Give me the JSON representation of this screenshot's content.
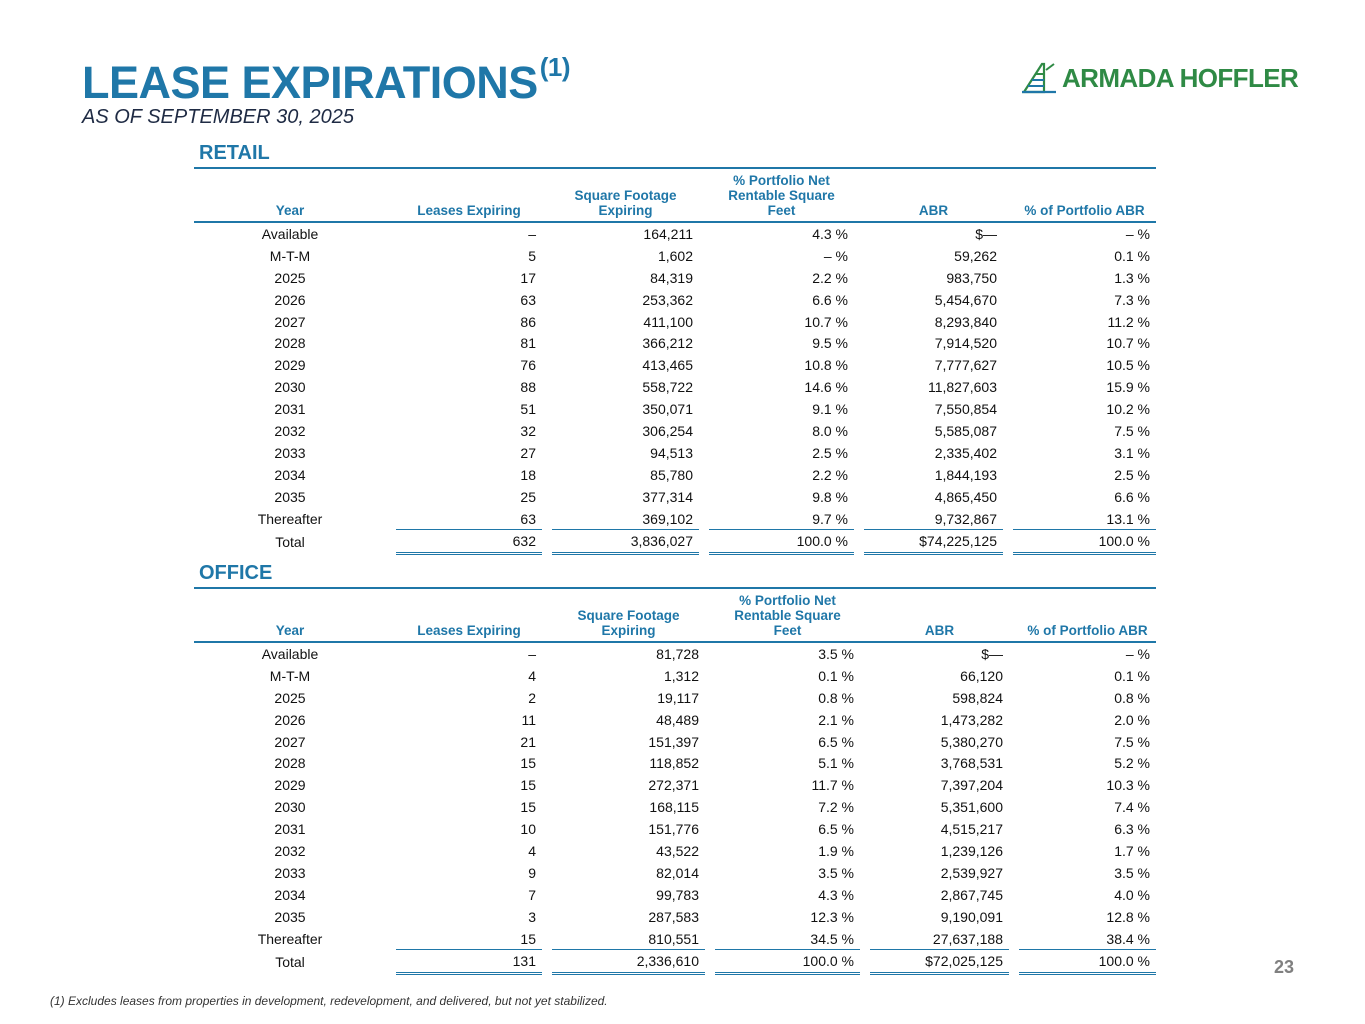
{
  "header": {
    "title": "LEASE EXPIRATIONS",
    "title_note": "(1)",
    "subtitle": "AS OF SEPTEMBER 30, 2025",
    "logo_text": "ARMADA HOFFLER"
  },
  "colors": {
    "accent": "#1f77a8",
    "logo": "#2f8a45"
  },
  "icons": {
    "logo": "armada-hoffler-logo-icon"
  },
  "retail": {
    "title": "RETAIL",
    "headers": {
      "year": "Year",
      "leases": "Leases Expiring",
      "sqft": "Square Footage Expiring",
      "pct_nrsf": "% Portfolio Net Rentable Square Feet",
      "abr": "ABR",
      "pct_abr": "% of Portfolio ABR"
    },
    "rows": [
      {
        "year": "Available",
        "leases": "–",
        "sqft": "164,211",
        "pct_nrsf": "4.3 %",
        "abr": "$—",
        "pct_abr": "– %"
      },
      {
        "year": "M-T-M",
        "leases": "5",
        "sqft": "1,602",
        "pct_nrsf": "– %",
        "abr": "59,262",
        "pct_abr": "0.1 %"
      },
      {
        "year": "2025",
        "leases": "17",
        "sqft": "84,319",
        "pct_nrsf": "2.2 %",
        "abr": "983,750",
        "pct_abr": "1.3 %"
      },
      {
        "year": "2026",
        "leases": "63",
        "sqft": "253,362",
        "pct_nrsf": "6.6 %",
        "abr": "5,454,670",
        "pct_abr": "7.3 %"
      },
      {
        "year": "2027",
        "leases": "86",
        "sqft": "411,100",
        "pct_nrsf": "10.7 %",
        "abr": "8,293,840",
        "pct_abr": "11.2 %"
      },
      {
        "year": "2028",
        "leases": "81",
        "sqft": "366,212",
        "pct_nrsf": "9.5 %",
        "abr": "7,914,520",
        "pct_abr": "10.7 %"
      },
      {
        "year": "2029",
        "leases": "76",
        "sqft": "413,465",
        "pct_nrsf": "10.8 %",
        "abr": "7,777,627",
        "pct_abr": "10.5 %"
      },
      {
        "year": "2030",
        "leases": "88",
        "sqft": "558,722",
        "pct_nrsf": "14.6 %",
        "abr": "11,827,603",
        "pct_abr": "15.9 %"
      },
      {
        "year": "2031",
        "leases": "51",
        "sqft": "350,071",
        "pct_nrsf": "9.1 %",
        "abr": "7,550,854",
        "pct_abr": "10.2 %"
      },
      {
        "year": "2032",
        "leases": "32",
        "sqft": "306,254",
        "pct_nrsf": "8.0 %",
        "abr": "5,585,087",
        "pct_abr": "7.5 %"
      },
      {
        "year": "2033",
        "leases": "27",
        "sqft": "94,513",
        "pct_nrsf": "2.5 %",
        "abr": "2,335,402",
        "pct_abr": "3.1 %"
      },
      {
        "year": "2034",
        "leases": "18",
        "sqft": "85,780",
        "pct_nrsf": "2.2 %",
        "abr": "1,844,193",
        "pct_abr": "2.5 %"
      },
      {
        "year": "2035",
        "leases": "25",
        "sqft": "377,314",
        "pct_nrsf": "9.8 %",
        "abr": "4,865,450",
        "pct_abr": "6.6 %"
      },
      {
        "year": "Thereafter",
        "leases": "63",
        "sqft": "369,102",
        "pct_nrsf": "9.7 %",
        "abr": "9,732,867",
        "pct_abr": "13.1 %"
      }
    ],
    "total": {
      "year": "Total",
      "leases": "632",
      "sqft": "3,836,027",
      "pct_nrsf": "100.0 %",
      "abr": "$74,225,125",
      "pct_abr": "100.0 %"
    }
  },
  "office": {
    "title": "OFFICE",
    "headers": {
      "year": "Year",
      "leases": "Leases Expiring",
      "sqft": "Square Footage Expiring",
      "pct_nrsf": "% Portfolio Net Rentable Square Feet",
      "abr": "ABR",
      "pct_abr": "% of Portfolio ABR"
    },
    "rows": [
      {
        "year": "Available",
        "leases": "–",
        "sqft": "81,728",
        "pct_nrsf": "3.5 %",
        "abr": "$—",
        "pct_abr": "– %"
      },
      {
        "year": "M-T-M",
        "leases": "4",
        "sqft": "1,312",
        "pct_nrsf": "0.1 %",
        "abr": "66,120",
        "pct_abr": "0.1 %"
      },
      {
        "year": "2025",
        "leases": "2",
        "sqft": "19,117",
        "pct_nrsf": "0.8 %",
        "abr": "598,824",
        "pct_abr": "0.8 %"
      },
      {
        "year": "2026",
        "leases": "11",
        "sqft": "48,489",
        "pct_nrsf": "2.1 %",
        "abr": "1,473,282",
        "pct_abr": "2.0 %"
      },
      {
        "year": "2027",
        "leases": "21",
        "sqft": "151,397",
        "pct_nrsf": "6.5 %",
        "abr": "5,380,270",
        "pct_abr": "7.5 %"
      },
      {
        "year": "2028",
        "leases": "15",
        "sqft": "118,852",
        "pct_nrsf": "5.1 %",
        "abr": "3,768,531",
        "pct_abr": "5.2 %"
      },
      {
        "year": "2029",
        "leases": "15",
        "sqft": "272,371",
        "pct_nrsf": "11.7 %",
        "abr": "7,397,204",
        "pct_abr": "10.3 %"
      },
      {
        "year": "2030",
        "leases": "15",
        "sqft": "168,115",
        "pct_nrsf": "7.2 %",
        "abr": "5,351,600",
        "pct_abr": "7.4 %"
      },
      {
        "year": "2031",
        "leases": "10",
        "sqft": "151,776",
        "pct_nrsf": "6.5 %",
        "abr": "4,515,217",
        "pct_abr": "6.3 %"
      },
      {
        "year": "2032",
        "leases": "4",
        "sqft": "43,522",
        "pct_nrsf": "1.9 %",
        "abr": "1,239,126",
        "pct_abr": "1.7 %"
      },
      {
        "year": "2033",
        "leases": "9",
        "sqft": "82,014",
        "pct_nrsf": "3.5 %",
        "abr": "2,539,927",
        "pct_abr": "3.5 %"
      },
      {
        "year": "2034",
        "leases": "7",
        "sqft": "99,783",
        "pct_nrsf": "4.3 %",
        "abr": "2,867,745",
        "pct_abr": "4.0 %"
      },
      {
        "year": "2035",
        "leases": "3",
        "sqft": "287,583",
        "pct_nrsf": "12.3 %",
        "abr": "9,190,091",
        "pct_abr": "12.8 %"
      },
      {
        "year": "Thereafter",
        "leases": "15",
        "sqft": "810,551",
        "pct_nrsf": "34.5 %",
        "abr": "27,637,188",
        "pct_abr": "38.4 %"
      }
    ],
    "total": {
      "year": "Total",
      "leases": "131",
      "sqft": "2,336,610",
      "pct_nrsf": "100.0 %",
      "abr": "$72,025,125",
      "pct_abr": "100.0 %"
    }
  },
  "footnote": "(1)  Excludes leases from properties in development, redevelopment, and delivered, but not yet stabilized.",
  "page_number": "23"
}
